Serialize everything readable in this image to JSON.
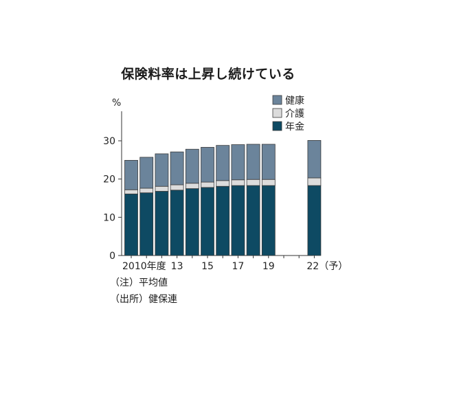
{
  "title": "保険料率は上昇し続けている",
  "chart_data": {
    "type": "bar",
    "stacked": true,
    "ylabel": "%",
    "ylim": [
      0,
      33
    ],
    "yticks": [
      0,
      10,
      20,
      30
    ],
    "legend_position": "top-right",
    "categories": [
      "2010",
      "11",
      "12",
      "13",
      "14",
      "15",
      "16",
      "17",
      "18",
      "19",
      "20",
      "21",
      "22"
    ],
    "x_tick_labels": [
      {
        "category": "2010",
        "text": "2010年度"
      },
      {
        "category": "13",
        "text": "13"
      },
      {
        "category": "15",
        "text": "15"
      },
      {
        "category": "17",
        "text": "17"
      },
      {
        "category": "19",
        "text": "19"
      },
      {
        "category": "22",
        "text": "22（予）"
      }
    ],
    "series": [
      {
        "name": "年金",
        "color": "#0e4a63",
        "values": [
          16.1,
          16.4,
          16.8,
          17.1,
          17.5,
          17.8,
          18.1,
          18.3,
          18.3,
          18.3,
          null,
          null,
          18.3
        ]
      },
      {
        "name": "介護",
        "color": "#dcdcdc",
        "values": [
          1.1,
          1.2,
          1.3,
          1.4,
          1.4,
          1.4,
          1.5,
          1.5,
          1.6,
          1.6,
          null,
          null,
          2.0
        ]
      },
      {
        "name": "健康",
        "color": "#6b849b",
        "values": [
          7.7,
          8.1,
          8.5,
          8.6,
          8.9,
          9.1,
          9.2,
          9.2,
          9.2,
          9.2,
          null,
          null,
          9.8
        ]
      }
    ],
    "legend_order": [
      "健康",
      "介護",
      "年金"
    ]
  },
  "notes": [
    "（注）平均値",
    "（出所）健保連"
  ]
}
